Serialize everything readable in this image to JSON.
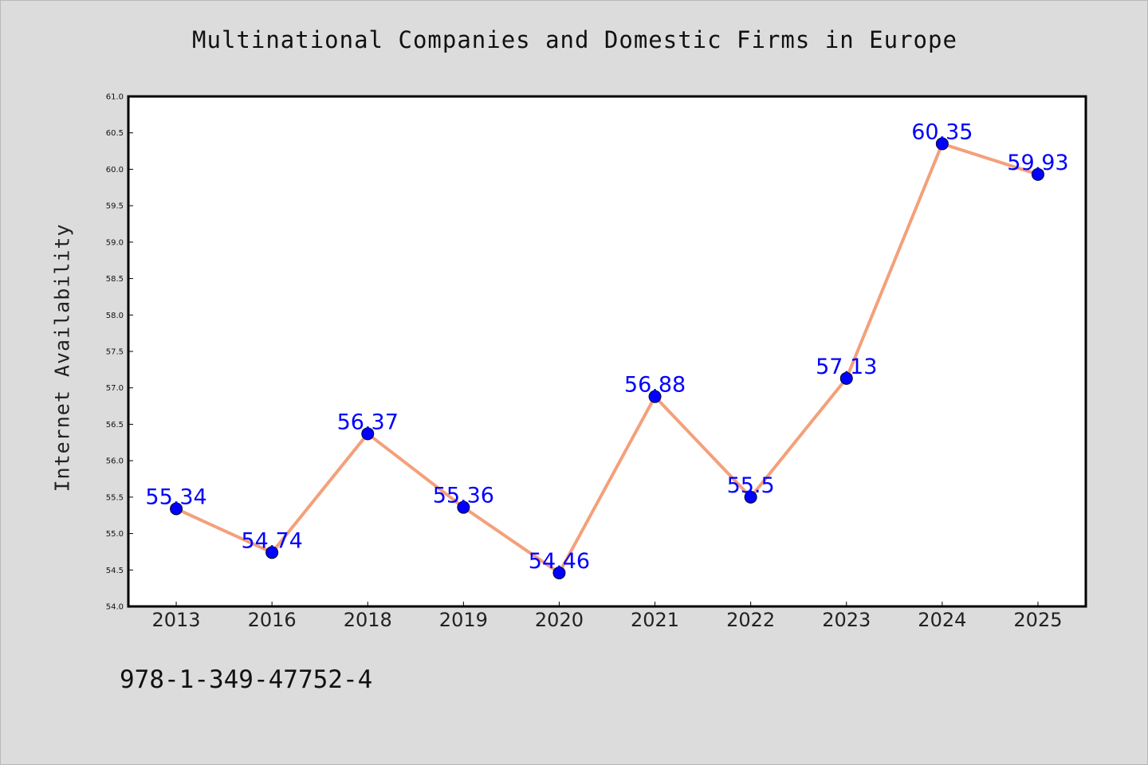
{
  "chart_data": {
    "type": "line",
    "title": "Multinational Companies and Domestic Firms in Europe",
    "xlabel": "",
    "ylabel": "Internet Availability",
    "categories": [
      "2013",
      "2016",
      "2018",
      "2019",
      "2020",
      "2021",
      "2022",
      "2023",
      "2024",
      "2025"
    ],
    "series": [
      {
        "values": [
          55.34,
          54.74,
          56.37,
          55.36,
          54.46,
          56.88,
          55.5,
          57.13,
          60.35,
          59.93
        ],
        "data_labels": [
          "55.34",
          "54.74",
          "56.37",
          "55.36",
          "54.46",
          "56.88",
          "55.5",
          "57.13",
          "60.35",
          "59.93"
        ],
        "line_color": "#f4a07a",
        "marker_color": "#0000ff"
      }
    ],
    "ylim": [
      54.0,
      61.0
    ],
    "yticks": [
      "54.0",
      "54.5",
      "55.0",
      "55.5",
      "56.0",
      "56.5",
      "57.0",
      "57.5",
      "58.0",
      "58.5",
      "59.0",
      "59.5",
      "60.0",
      "60.5",
      "61.0"
    ],
    "grid": false,
    "legend": "none"
  },
  "footer": {
    "isbn": "978-1-349-47752-4"
  },
  "colors": {
    "figure_background": "#dcdcdc",
    "plot_background": "#ffffff",
    "axes_frame": "#000000",
    "line": "#f4a07a",
    "marker": "#0000ff",
    "data_label": "#0000ff"
  }
}
